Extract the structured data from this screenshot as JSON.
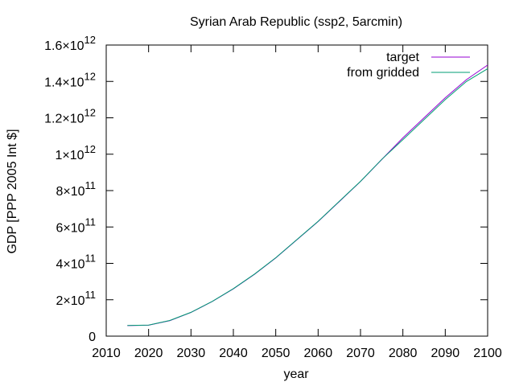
{
  "chart_data": {
    "type": "line",
    "title": "Syrian Arab Republic (ssp2, 5arcmin)",
    "xlabel": "year",
    "ylabel": "GDP [PPP 2005 Int $]",
    "xlim": [
      2010,
      2100
    ],
    "ylim": [
      0,
      1600000000000.0
    ],
    "x_ticks": [
      2010,
      2020,
      2030,
      2040,
      2050,
      2060,
      2070,
      2080,
      2090,
      2100
    ],
    "y_ticks": [
      {
        "value": 0,
        "mantissa": "0",
        "exponent": ""
      },
      {
        "value": 200000000000.0,
        "mantissa": "2×10",
        "exponent": "11"
      },
      {
        "value": 400000000000.0,
        "mantissa": "4×10",
        "exponent": "11"
      },
      {
        "value": 600000000000.0,
        "mantissa": "6×10",
        "exponent": "11"
      },
      {
        "value": 800000000000.0,
        "mantissa": "8×10",
        "exponent": "11"
      },
      {
        "value": 1000000000000.0,
        "mantissa": "1×10",
        "exponent": "12"
      },
      {
        "value": 1200000000000.0,
        "mantissa": "1.2×10",
        "exponent": "12"
      },
      {
        "value": 1400000000000.0,
        "mantissa": "1.4×10",
        "exponent": "12"
      },
      {
        "value": 1600000000000.0,
        "mantissa": "1.6×10",
        "exponent": "12"
      }
    ],
    "grid": false,
    "legend_position": "top-right",
    "x": [
      2015,
      2020,
      2025,
      2030,
      2035,
      2040,
      2045,
      2050,
      2055,
      2060,
      2065,
      2070,
      2075,
      2080,
      2085,
      2090,
      2095,
      2100
    ],
    "series": [
      {
        "name": "target",
        "color": "#9400d3",
        "values": [
          58000000000.0,
          60000000000.0,
          85000000000.0,
          130000000000.0,
          190000000000.0,
          260000000000.0,
          340000000000.0,
          430000000000.0,
          530000000000.0,
          630000000000.0,
          740000000000.0,
          850000000000.0,
          970000000000.0,
          1090000000000.0,
          1200000000000.0,
          1310000000000.0,
          1410000000000.0,
          1490000000000.0
        ]
      },
      {
        "name": "from gridded",
        "color": "#009e73",
        "values": [
          59000000000.0,
          61000000000.0,
          86000000000.0,
          131000000000.0,
          191000000000.0,
          261000000000.0,
          341000000000.0,
          431000000000.0,
          531000000000.0,
          631000000000.0,
          741000000000.0,
          851000000000.0,
          971000000000.0,
          1080000000000.0,
          1190000000000.0,
          1300000000000.0,
          1400000000000.0,
          1470000000000.0
        ]
      }
    ]
  }
}
